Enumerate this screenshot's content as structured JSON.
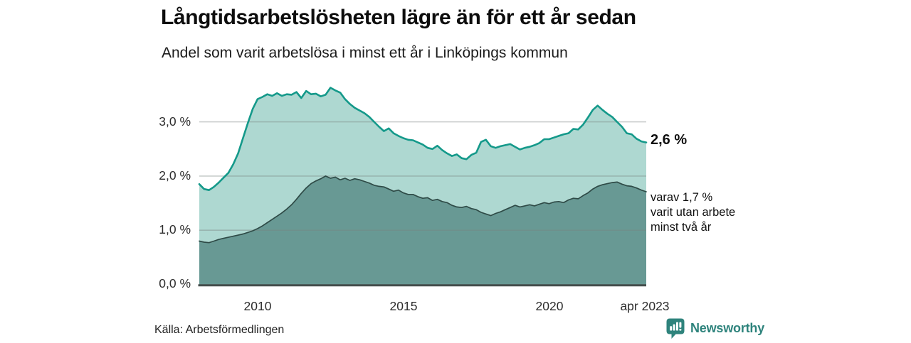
{
  "header": {
    "title": "Långtidsarbetslösheten lägre än för ett år sedan",
    "subtitle": "Andel som varit arbetslösa i minst ett år i Linköpings kommun"
  },
  "annotations": {
    "latest_total": "2,6 %",
    "two_year_lines": [
      "varav 1,7 %",
      "varit utan arbete",
      "minst två år"
    ]
  },
  "footer": {
    "source": "Källa: Arbetsförmedlingen",
    "brand_name": "Newsworthy"
  },
  "colors": {
    "background": "#ffffff",
    "accent_line": "#14998a",
    "accent_fill": "#aed8d1",
    "dark_line": "#2f4b47",
    "dark_fill": "#689994",
    "grid": "rgba(120,130,128,0.40)",
    "axis": "#454e4c",
    "brand": "#2e837c",
    "text": "#101010"
  },
  "chart_data": {
    "type": "area",
    "title": "Långtidsarbetslösheten lägre än för ett år sedan",
    "subtitle": "Andel som varit arbetslösa i minst ett år i Linköpings kommun",
    "xlabel": "",
    "ylabel": "",
    "xlim": [
      2008.0,
      2023.333
    ],
    "ylim": [
      0,
      3.8
    ],
    "grid": true,
    "legend": "none (direct end-of-line labels)",
    "x_start": 2008.0,
    "x_end": 2023.333,
    "x_unit": "year (monthly samples, every 2 months)",
    "y_unit": "percent",
    "x_ticks": [
      {
        "value": 2010,
        "label": "2010"
      },
      {
        "value": 2015,
        "label": "2015"
      },
      {
        "value": 2020,
        "label": "2020"
      },
      {
        "value": 2023.29,
        "label": "apr 2023"
      }
    ],
    "y_ticks": [
      {
        "value": 0,
        "label": "0,0 %"
      },
      {
        "value": 1,
        "label": "1,0 %"
      },
      {
        "value": 2,
        "label": "2,0 %"
      },
      {
        "value": 3,
        "label": "3,0 %"
      }
    ],
    "series": [
      {
        "name": "Arbetslösa minst ett år",
        "end_label": "2,6 %",
        "end_value": 2.6,
        "color": "#14998a",
        "fill": "#aed8d1",
        "values": [
          1.85,
          1.76,
          1.74,
          1.8,
          1.88,
          1.97,
          2.06,
          2.22,
          2.42,
          2.7,
          2.98,
          3.24,
          3.42,
          3.46,
          3.51,
          3.48,
          3.53,
          3.48,
          3.51,
          3.5,
          3.55,
          3.44,
          3.57,
          3.51,
          3.52,
          3.47,
          3.5,
          3.63,
          3.58,
          3.54,
          3.42,
          3.33,
          3.26,
          3.21,
          3.16,
          3.09,
          3.0,
          2.91,
          2.83,
          2.88,
          2.79,
          2.74,
          2.7,
          2.67,
          2.66,
          2.62,
          2.58,
          2.52,
          2.5,
          2.56,
          2.48,
          2.42,
          2.37,
          2.4,
          2.33,
          2.31,
          2.39,
          2.43,
          2.63,
          2.67,
          2.55,
          2.52,
          2.55,
          2.57,
          2.59,
          2.54,
          2.49,
          2.52,
          2.54,
          2.57,
          2.61,
          2.68,
          2.68,
          2.71,
          2.74,
          2.77,
          2.79,
          2.87,
          2.86,
          2.95,
          3.08,
          3.22,
          3.3,
          3.22,
          3.15,
          3.09,
          3.0,
          2.91,
          2.79,
          2.77,
          2.69,
          2.64,
          2.62
        ]
      },
      {
        "name": "varav arbetslösa minst två år",
        "end_label": "varav 1,7 % varit utan arbete minst två år",
        "end_value": 1.7,
        "color": "#2f4b47",
        "fill": "#689994",
        "values": [
          0.8,
          0.78,
          0.77,
          0.8,
          0.83,
          0.85,
          0.87,
          0.89,
          0.91,
          0.93,
          0.96,
          0.99,
          1.03,
          1.08,
          1.14,
          1.2,
          1.26,
          1.32,
          1.39,
          1.47,
          1.57,
          1.68,
          1.78,
          1.86,
          1.91,
          1.95,
          2.0,
          1.96,
          1.98,
          1.93,
          1.96,
          1.92,
          1.95,
          1.93,
          1.9,
          1.87,
          1.83,
          1.81,
          1.8,
          1.76,
          1.72,
          1.74,
          1.69,
          1.66,
          1.66,
          1.62,
          1.59,
          1.6,
          1.55,
          1.57,
          1.53,
          1.51,
          1.46,
          1.43,
          1.42,
          1.44,
          1.4,
          1.38,
          1.33,
          1.3,
          1.27,
          1.31,
          1.34,
          1.38,
          1.42,
          1.46,
          1.43,
          1.45,
          1.47,
          1.45,
          1.48,
          1.51,
          1.49,
          1.52,
          1.53,
          1.51,
          1.56,
          1.59,
          1.58,
          1.64,
          1.69,
          1.76,
          1.81,
          1.84,
          1.86,
          1.88,
          1.89,
          1.85,
          1.82,
          1.81,
          1.78,
          1.74,
          1.71
        ]
      }
    ]
  }
}
